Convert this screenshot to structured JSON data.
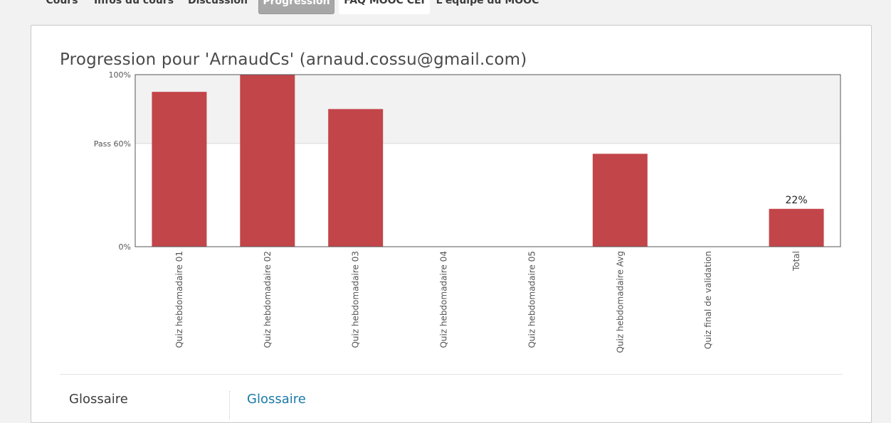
{
  "course_nav": {
    "tabs": [
      {
        "label": "Cours",
        "active": false
      },
      {
        "label": "Infos du cours",
        "active": false
      },
      {
        "label": "Discussion",
        "active": false
      },
      {
        "label": "Progression",
        "active": true
      },
      {
        "label": "FAQ MOOC CEI",
        "active": false
      },
      {
        "label": "L'équipe du MOOC",
        "active": false
      }
    ]
  },
  "progress": {
    "title": "Progression pour 'ArnaudCs' (arnaud.cossu@gmail.com)"
  },
  "chart_data": {
    "type": "bar",
    "categories": [
      "Quiz hebdomadaire 01",
      "Quiz hebdomadaire 02",
      "Quiz hebdomadaire 03",
      "Quiz hebdomadaire 04",
      "Quiz hebdomadaire 05",
      "Quiz hebdomadaire Avg",
      "Quiz final de validation",
      "Total"
    ],
    "values": [
      90,
      100,
      80,
      0,
      0,
      54,
      0,
      22
    ],
    "ylim": [
      0,
      100
    ],
    "y_tick_labels": [
      "0%",
      "Pass 60%",
      "100%"
    ],
    "y_ticks": [
      0,
      60,
      100
    ],
    "pass_threshold": 60,
    "data_labels": [
      {
        "category": "Total",
        "text": "22%"
      }
    ],
    "bar_color": "#c24549",
    "pass_zone_color": "#f2f2f2",
    "grid": false,
    "legend": "none"
  },
  "glossary": {
    "label": "Glossaire",
    "link_text": "Glossaire",
    "link_color": "#1b79a8"
  }
}
